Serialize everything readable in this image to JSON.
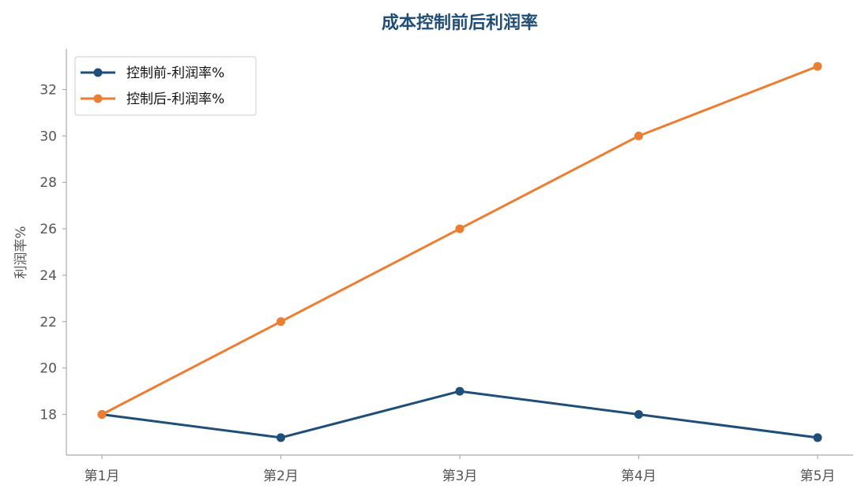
{
  "chart_data": {
    "type": "line",
    "title": "成本控制前后利润率",
    "xlabel": "",
    "ylabel": "利润率%",
    "categories": [
      "第1月",
      "第2月",
      "第3月",
      "第4月",
      "第5月"
    ],
    "series": [
      {
        "name": "控制前-利润率%",
        "values": [
          18,
          17,
          19,
          18,
          17
        ],
        "color": "#1f4e79"
      },
      {
        "name": "控制后-利润率%",
        "values": [
          18,
          22,
          26,
          30,
          33
        ],
        "color": "#ed7d31"
      }
    ],
    "yticks": [
      18,
      20,
      22,
      24,
      26,
      28,
      30,
      32
    ],
    "ylim": [
      16.25,
      33.75
    ],
    "grid": false,
    "legend": "top-left",
    "title_color": "#1f4e79",
    "axis_color": "#aaaaaa"
  }
}
